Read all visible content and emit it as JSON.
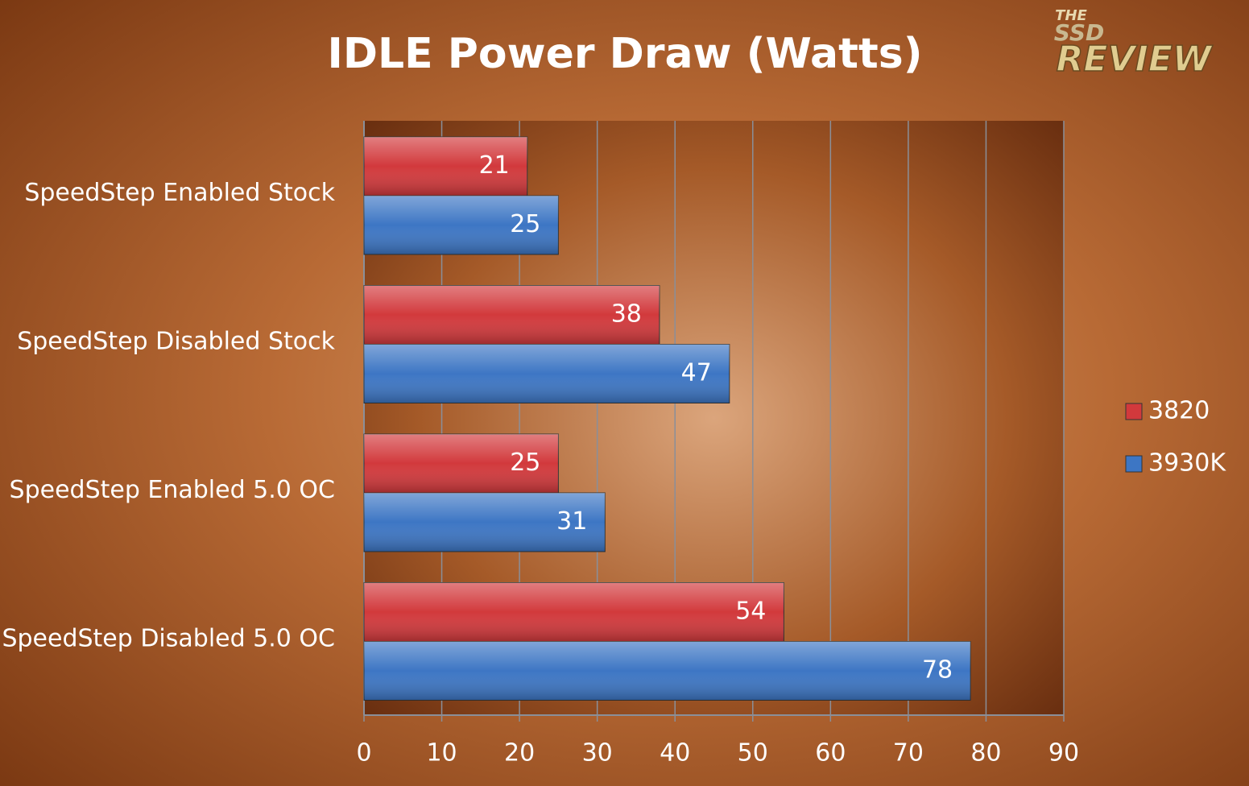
{
  "chart_data": {
    "type": "bar",
    "orientation": "horizontal",
    "title": "IDLE Power Draw (Watts)",
    "logo": {
      "top": "THE",
      "middle": "SSD",
      "bottom": "REVIEW"
    },
    "categories": [
      "SpeedStep Enabled Stock",
      "SpeedStep Disabled Stock",
      "SpeedStep Enabled 5.0 OC",
      "SpeedStep Disabled 5.0 OC"
    ],
    "series": [
      {
        "name": "3820",
        "color": "#d2393c",
        "values": [
          21,
          38,
          25,
          54
        ]
      },
      {
        "name": "3930K",
        "color": "#3d76c4",
        "values": [
          25,
          47,
          31,
          78
        ]
      }
    ],
    "xlim": [
      0,
      90
    ],
    "xticks": [
      0,
      10,
      20,
      30,
      40,
      50,
      60,
      70,
      80,
      90
    ],
    "grid": true,
    "legend": "right"
  }
}
